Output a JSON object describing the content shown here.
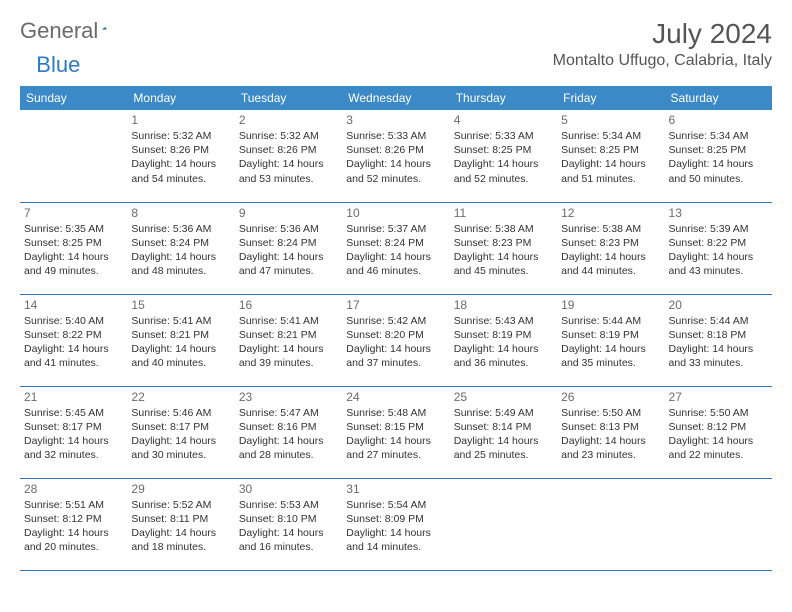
{
  "logo": {
    "general": "General",
    "blue": "Blue"
  },
  "header": {
    "month_title": "July 2024",
    "location": "Montalto Uffugo, Calabria, Italy"
  },
  "colors": {
    "header_bg": "#3b89c7",
    "accent": "#2f7ac0",
    "text_gray": "#6b6b6b"
  },
  "weekdays": [
    "Sunday",
    "Monday",
    "Tuesday",
    "Wednesday",
    "Thursday",
    "Friday",
    "Saturday"
  ],
  "rows": [
    [
      null,
      {
        "n": "1",
        "sr": "5:32 AM",
        "ss": "8:26 PM",
        "dl": "14 hours and 54 minutes."
      },
      {
        "n": "2",
        "sr": "5:32 AM",
        "ss": "8:26 PM",
        "dl": "14 hours and 53 minutes."
      },
      {
        "n": "3",
        "sr": "5:33 AM",
        "ss": "8:26 PM",
        "dl": "14 hours and 52 minutes."
      },
      {
        "n": "4",
        "sr": "5:33 AM",
        "ss": "8:25 PM",
        "dl": "14 hours and 52 minutes."
      },
      {
        "n": "5",
        "sr": "5:34 AM",
        "ss": "8:25 PM",
        "dl": "14 hours and 51 minutes."
      },
      {
        "n": "6",
        "sr": "5:34 AM",
        "ss": "8:25 PM",
        "dl": "14 hours and 50 minutes."
      }
    ],
    [
      {
        "n": "7",
        "sr": "5:35 AM",
        "ss": "8:25 PM",
        "dl": "14 hours and 49 minutes."
      },
      {
        "n": "8",
        "sr": "5:36 AM",
        "ss": "8:24 PM",
        "dl": "14 hours and 48 minutes."
      },
      {
        "n": "9",
        "sr": "5:36 AM",
        "ss": "8:24 PM",
        "dl": "14 hours and 47 minutes."
      },
      {
        "n": "10",
        "sr": "5:37 AM",
        "ss": "8:24 PM",
        "dl": "14 hours and 46 minutes."
      },
      {
        "n": "11",
        "sr": "5:38 AM",
        "ss": "8:23 PM",
        "dl": "14 hours and 45 minutes."
      },
      {
        "n": "12",
        "sr": "5:38 AM",
        "ss": "8:23 PM",
        "dl": "14 hours and 44 minutes."
      },
      {
        "n": "13",
        "sr": "5:39 AM",
        "ss": "8:22 PM",
        "dl": "14 hours and 43 minutes."
      }
    ],
    [
      {
        "n": "14",
        "sr": "5:40 AM",
        "ss": "8:22 PM",
        "dl": "14 hours and 41 minutes."
      },
      {
        "n": "15",
        "sr": "5:41 AM",
        "ss": "8:21 PM",
        "dl": "14 hours and 40 minutes."
      },
      {
        "n": "16",
        "sr": "5:41 AM",
        "ss": "8:21 PM",
        "dl": "14 hours and 39 minutes."
      },
      {
        "n": "17",
        "sr": "5:42 AM",
        "ss": "8:20 PM",
        "dl": "14 hours and 37 minutes."
      },
      {
        "n": "18",
        "sr": "5:43 AM",
        "ss": "8:19 PM",
        "dl": "14 hours and 36 minutes."
      },
      {
        "n": "19",
        "sr": "5:44 AM",
        "ss": "8:19 PM",
        "dl": "14 hours and 35 minutes."
      },
      {
        "n": "20",
        "sr": "5:44 AM",
        "ss": "8:18 PM",
        "dl": "14 hours and 33 minutes."
      }
    ],
    [
      {
        "n": "21",
        "sr": "5:45 AM",
        "ss": "8:17 PM",
        "dl": "14 hours and 32 minutes."
      },
      {
        "n": "22",
        "sr": "5:46 AM",
        "ss": "8:17 PM",
        "dl": "14 hours and 30 minutes."
      },
      {
        "n": "23",
        "sr": "5:47 AM",
        "ss": "8:16 PM",
        "dl": "14 hours and 28 minutes."
      },
      {
        "n": "24",
        "sr": "5:48 AM",
        "ss": "8:15 PM",
        "dl": "14 hours and 27 minutes."
      },
      {
        "n": "25",
        "sr": "5:49 AM",
        "ss": "8:14 PM",
        "dl": "14 hours and 25 minutes."
      },
      {
        "n": "26",
        "sr": "5:50 AM",
        "ss": "8:13 PM",
        "dl": "14 hours and 23 minutes."
      },
      {
        "n": "27",
        "sr": "5:50 AM",
        "ss": "8:12 PM",
        "dl": "14 hours and 22 minutes."
      }
    ],
    [
      {
        "n": "28",
        "sr": "5:51 AM",
        "ss": "8:12 PM",
        "dl": "14 hours and 20 minutes."
      },
      {
        "n": "29",
        "sr": "5:52 AM",
        "ss": "8:11 PM",
        "dl": "14 hours and 18 minutes."
      },
      {
        "n": "30",
        "sr": "5:53 AM",
        "ss": "8:10 PM",
        "dl": "14 hours and 16 minutes."
      },
      {
        "n": "31",
        "sr": "5:54 AM",
        "ss": "8:09 PM",
        "dl": "14 hours and 14 minutes."
      },
      null,
      null,
      null
    ]
  ],
  "labels": {
    "sunrise": "Sunrise:",
    "sunset": "Sunset:",
    "daylight": "Daylight:"
  },
  "style": {
    "cell_font_size": 10.5,
    "header_font_size": 12,
    "title_font_size": 28,
    "location_font_size": 16
  }
}
